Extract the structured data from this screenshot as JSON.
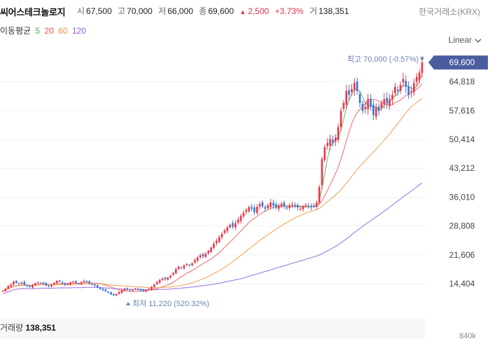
{
  "header": {
    "name": "씨어스테크놀로지",
    "open_label": "시",
    "open": "67,500",
    "high_label": "고",
    "high": "70,000",
    "low_label": "저",
    "low": "66,000",
    "close_label": "종",
    "close": "69,600",
    "change_arrow": "▲",
    "change": "2,500",
    "change_pct": "+3.73%",
    "volume_label": "거",
    "volume": "138,351",
    "exchange": "한국거래소(KRX)"
  },
  "ma_legend": {
    "title": "이동평균",
    "periods": [
      "5",
      "20",
      "60",
      "120"
    ],
    "colors": [
      "#4caf50",
      "#ef5350",
      "#f0913a",
      "#8e5cd9"
    ]
  },
  "scale": {
    "label": "Linear",
    "icon": "chevron-down-icon"
  },
  "volume_panel": {
    "label": "거래량",
    "value": "138,351",
    "axis_tick": "840k"
  },
  "chart_data": {
    "type": "candlestick",
    "y_ticks": [
      14404,
      21606,
      28808,
      36010,
      43212,
      50414,
      57616,
      64818
    ],
    "y_tick_labels": [
      "14,404",
      "21,606",
      "28,808",
      "36,010",
      "43,212",
      "50,414",
      "57,616",
      "64,818"
    ],
    "last_price": 69600,
    "last_price_label": "69,600",
    "high": {
      "value": 70000,
      "label": "최고 70,000 (-0.57%)"
    },
    "low": {
      "value": 11220,
      "label": "최저 11,220 (520.32%)"
    },
    "colors": {
      "up": "#e8394c",
      "down": "#3a78d8",
      "last_price_bg": "#4a5d9e"
    },
    "closes": [
      12600,
      13100,
      13800,
      14200,
      14900,
      14600,
      14300,
      14700,
      14100,
      13800,
      13600,
      14100,
      14500,
      14800,
      14600,
      14400,
      14000,
      13700,
      14100,
      14600,
      15100,
      14900,
      14500,
      14100,
      14300,
      14700,
      14900,
      14600,
      14300,
      14700,
      15100,
      14900,
      14500,
      14200,
      13900,
      13500,
      13100,
      12800,
      12500,
      12200,
      11700,
      11500,
      11800,
      12300,
      12700,
      13100,
      12900,
      12700,
      12900,
      13200,
      12900,
      12700,
      12500,
      12800,
      13100,
      13600,
      14200,
      14800,
      15300,
      15700,
      15500,
      15900,
      16400,
      17100,
      18000,
      18600,
      18300,
      18900,
      19300,
      19000,
      19500,
      20300,
      20900,
      21500,
      21200,
      21900,
      22600,
      23400,
      24300,
      25100,
      26000,
      26800,
      27700,
      28400,
      29100,
      28600,
      29500,
      30400,
      31300,
      32100,
      32800,
      33500,
      33100,
      32300,
      33600,
      34300,
      33700,
      33100,
      34000,
      34700,
      33900,
      33400,
      33800,
      34300,
      33700,
      33200,
      33700,
      34200,
      33800,
      33400,
      33100,
      33600,
      34100,
      33700,
      33500,
      33800,
      34600,
      38500,
      45500,
      48500,
      49500,
      50500,
      49500,
      50800,
      53500,
      57500,
      59500,
      62500,
      61500,
      63000,
      64500,
      62500,
      59500,
      57500,
      58500,
      60500,
      58500,
      56500,
      58500,
      57500,
      59500,
      60500,
      59500,
      60500,
      61500,
      63500,
      62500,
      64000,
      65500,
      63500,
      61500,
      62500,
      64500,
      66000,
      67100,
      69600
    ]
  }
}
